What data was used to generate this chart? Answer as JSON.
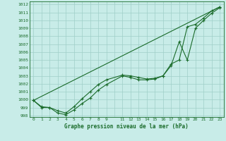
{
  "title": "Graphe pression niveau de la mer (hPa)",
  "bg_color": "#c8ece8",
  "grid_color": "#9fcfc8",
  "line_color": "#1a6b2a",
  "xlim": [
    -0.5,
    23.5
  ],
  "ylim": [
    997.8,
    1012.4
  ],
  "ytick_values": [
    998,
    999,
    1000,
    1001,
    1002,
    1003,
    1004,
    1005,
    1006,
    1007,
    1008,
    1009,
    1010,
    1011,
    1012
  ],
  "xtick_positions": [
    0,
    1,
    2,
    3,
    4,
    5,
    6,
    7,
    8,
    9,
    10,
    11,
    12,
    13,
    14,
    15,
    16,
    17,
    18,
    19,
    20,
    21,
    22,
    23
  ],
  "xtick_labels": [
    "0",
    "1",
    "2",
    "3",
    "4",
    "5",
    "6",
    "7",
    "8",
    "9",
    "",
    "11",
    "12",
    "13",
    "14",
    "15",
    "16",
    "17",
    "18",
    "19",
    "20",
    "21",
    "22",
    "23"
  ],
  "series1_x": [
    0,
    1,
    2,
    3,
    4,
    5,
    6,
    7,
    8,
    9,
    11,
    12,
    13,
    14,
    15,
    16,
    17,
    18,
    19,
    20,
    21,
    22,
    23
  ],
  "series1_y": [
    999.9,
    999.0,
    999.0,
    998.3,
    998.1,
    998.7,
    999.5,
    1000.2,
    1001.2,
    1001.9,
    1003.0,
    1002.8,
    1002.5,
    1002.5,
    1002.6,
    1003.0,
    1004.3,
    1007.3,
    1005.0,
    1009.0,
    1010.0,
    1010.9,
    1011.6
  ],
  "series2_x": [
    0,
    1,
    2,
    3,
    4,
    5,
    6,
    7,
    8,
    9,
    11,
    12,
    13,
    14,
    15,
    16,
    17,
    18,
    19,
    20,
    21,
    22,
    23
  ],
  "series2_y": [
    999.9,
    999.1,
    999.0,
    998.6,
    998.3,
    999.1,
    1000.1,
    1001.0,
    1001.9,
    1002.5,
    1003.1,
    1003.0,
    1002.8,
    1002.6,
    1002.7,
    1003.0,
    1004.5,
    1005.0,
    1009.2,
    1009.5,
    1010.3,
    1011.2,
    1011.7
  ],
  "series3_x": [
    0,
    23
  ],
  "series3_y": [
    999.9,
    1011.7
  ]
}
